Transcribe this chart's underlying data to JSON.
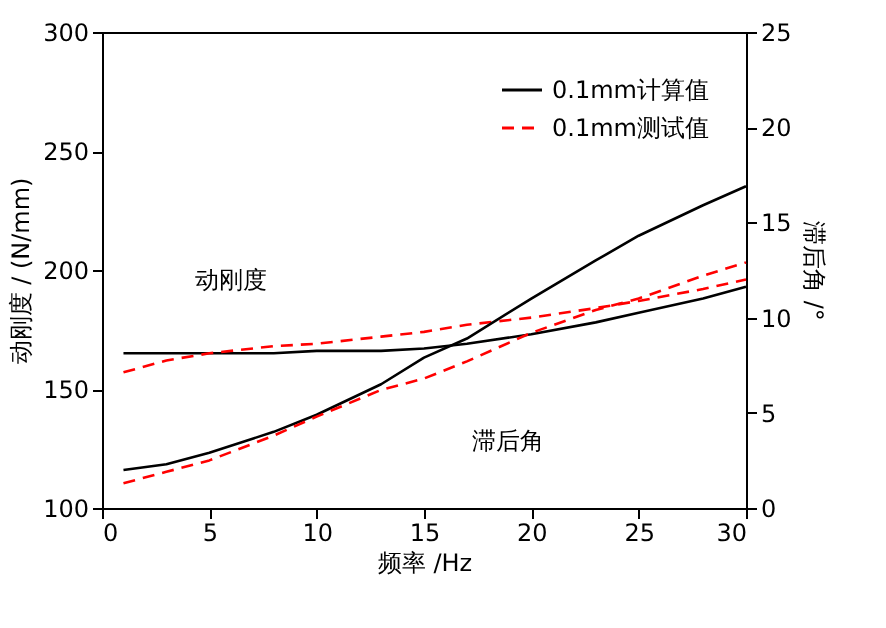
{
  "chart_data": {
    "type": "line",
    "xlabel": "频率 /Hz",
    "ylabel": "动刚度 / (N/mm)",
    "y2label": "滞后角 /°",
    "x": [
      1,
      3,
      5,
      8,
      10,
      13,
      15,
      17,
      20,
      23,
      25,
      28,
      30
    ],
    "series": [
      {
        "name": "0.1mm计算值",
        "color": "#000000",
        "line_style": "solid",
        "values": [
          165,
          165,
          165,
          165,
          166,
          166,
          167,
          169,
          173,
          178,
          182,
          188,
          193
        ]
      },
      {
        "name": "0.1mm测试值",
        "color": "#ff0000",
        "line_style": "dashed",
        "values": [
          157,
          162,
          165,
          168,
          169,
          172,
          174,
          177,
          180,
          184,
          187,
          192,
          196
        ]
      },
      {
        "color": "#000000",
        "line_style": "solid",
        "axis": "y2",
        "values": [
          2.0,
          2.3,
          2.9,
          4.0,
          4.9,
          6.5,
          7.9,
          8.9,
          11.0,
          13.0,
          14.3,
          15.9,
          16.9
        ]
      },
      {
        "color": "#ff0000",
        "line_style": "dashed",
        "axis": "y2",
        "values": [
          1.3,
          1.9,
          2.5,
          3.8,
          4.8,
          6.2,
          6.8,
          7.7,
          9.2,
          10.4,
          11.0,
          12.2,
          12.9
        ]
      }
    ],
    "xlim": [
      0,
      30
    ],
    "xticks": [
      0,
      5,
      10,
      15,
      20,
      25,
      30
    ],
    "ylim": [
      100,
      300
    ],
    "yticks": [
      100,
      150,
      200,
      250,
      300
    ],
    "y2lim": [
      0,
      25
    ],
    "y2ticks": [
      0,
      5,
      10,
      15,
      20,
      25
    ],
    "legend": "top right",
    "grid": false,
    "marker": "none",
    "annotations": [
      "动刚度",
      "滞后角"
    ]
  }
}
